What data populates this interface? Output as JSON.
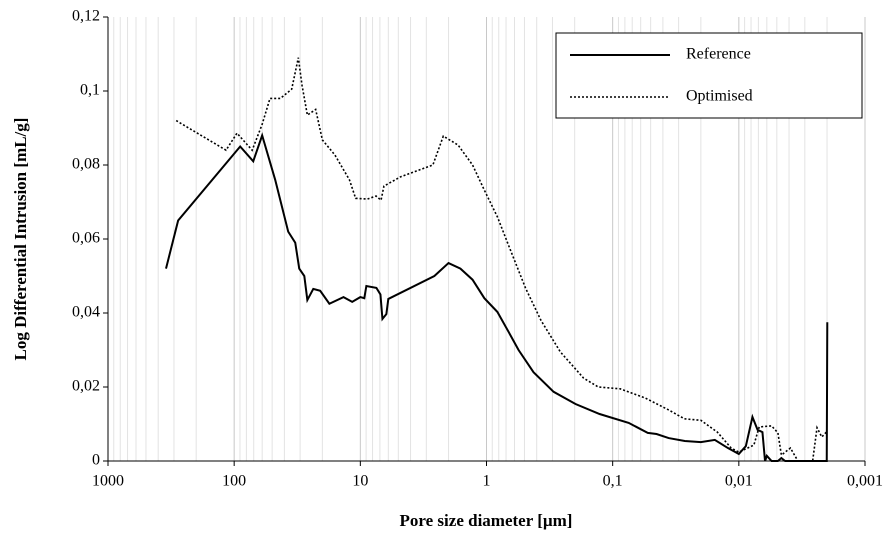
{
  "chart_data": {
    "type": "line",
    "xlabel": "Pore size diameter [µm]",
    "ylabel": "Log Differential Intrusion [mL/g]",
    "xscale": "log",
    "xlim": [
      1000,
      0.001
    ],
    "xticks": [
      1000,
      100,
      10,
      1,
      {
        "value": 0.1,
        "label": "0,1"
      },
      {
        "value": 0.01,
        "label": "0,01"
      },
      {
        "value": 0.001,
        "label": "0,001"
      }
    ],
    "ylim": [
      0,
      0.12
    ],
    "yticks": [
      {
        "value": 0,
        "label": "0"
      },
      {
        "value": 0.02,
        "label": "0,02"
      },
      {
        "value": 0.04,
        "label": "0,04"
      },
      {
        "value": 0.06,
        "label": "0,06"
      },
      {
        "value": 0.08,
        "label": "0,08"
      },
      {
        "value": 0.1,
        "label": "0,1"
      },
      {
        "value": 0.12,
        "label": "0,12"
      }
    ],
    "grid": "x",
    "legend": "upper right",
    "series": [
      {
        "name": "Reference",
        "color": "#000000",
        "dash": "solid",
        "x": [
          347,
          278,
          89.6,
          70.6,
          60,
          47.3,
          37.3,
          32.8,
          30.5,
          27.8,
          26.3,
          23.6,
          20.8,
          17.6,
          13.6,
          11.6,
          10,
          9.3,
          8.96,
          7.46,
          6.93,
          6.68,
          6.22,
          6.0,
          2.59,
          2.0,
          1.61,
          1.29,
          1.04,
          0.82,
          0.646,
          0.557,
          0.424,
          0.294,
          0.197,
          0.127,
          0.0746,
          0.0527,
          0.0449,
          0.036,
          0.0268,
          0.02,
          0.0155,
          0.0122,
          0.01,
          0.0088,
          0.0078,
          0.0071,
          0.0065,
          0.0062,
          0.006,
          0.0055,
          0.0049,
          0.0046,
          0.0043,
          0.00201,
          0.00199
        ],
        "values": [
          0.052,
          0.065,
          0.085,
          0.081,
          0.088,
          0.076,
          0.062,
          0.059,
          0.052,
          0.05,
          0.0435,
          0.0465,
          0.046,
          0.0425,
          0.0443,
          0.043,
          0.0443,
          0.044,
          0.0473,
          0.0468,
          0.045,
          0.0384,
          0.0397,
          0.0438,
          0.05,
          0.0535,
          0.052,
          0.049,
          0.044,
          0.0403,
          0.034,
          0.03,
          0.024,
          0.0187,
          0.0154,
          0.0127,
          0.0103,
          0.0076,
          0.0073,
          0.0062,
          0.0054,
          0.0051,
          0.0057,
          0.0035,
          0.0019,
          0.004,
          0.0119,
          0.0084,
          0.0078,
          0,
          0.0014,
          0,
          0,
          0.0008,
          0,
          0,
          0.0375
        ]
      },
      {
        "name": "Optimised",
        "color": "#000000",
        "dash": "dotted",
        "x": [
          288,
          116,
          95,
          72,
          60,
          52,
          43,
          35,
          31,
          29,
          26.3,
          22.6,
          20,
          15.9,
          12.2,
          10.9,
          8.8,
          7.5,
          6.85,
          6.5,
          4.8,
          2.66,
          2.2,
          1.68,
          1.29,
          1.04,
          0.82,
          0.646,
          0.49,
          0.37,
          0.26,
          0.17,
          0.13,
          0.087,
          0.055,
          0.036,
          0.027,
          0.02,
          0.0148,
          0.0115,
          0.01,
          0.0076,
          0.0069,
          0.0055,
          0.0049,
          0.0046,
          0.0039,
          0.0034,
          0.0026,
          0.0024,
          0.0022,
          0.002
        ],
        "values": [
          0.092,
          0.084,
          0.0886,
          0.084,
          0.091,
          0.098,
          0.098,
          0.1005,
          0.109,
          0.1016,
          0.0935,
          0.095,
          0.0868,
          0.0827,
          0.076,
          0.071,
          0.0708,
          0.0716,
          0.0705,
          0.0743,
          0.0768,
          0.08,
          0.0878,
          0.0854,
          0.08,
          0.0732,
          0.066,
          0.057,
          0.0467,
          0.038,
          0.0295,
          0.0224,
          0.02,
          0.0195,
          0.017,
          0.0138,
          0.0114,
          0.011,
          0.0078,
          0.0035,
          0.0024,
          0.0043,
          0.0092,
          0.0095,
          0.0076,
          0.0016,
          0.0035,
          0,
          0,
          0.009,
          0.0065,
          0.008
        ]
      }
    ]
  }
}
